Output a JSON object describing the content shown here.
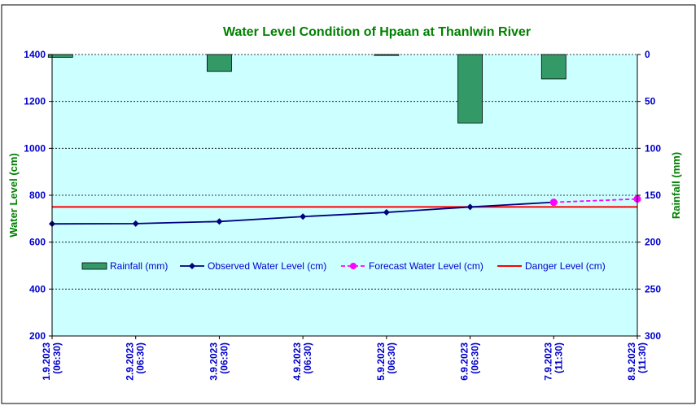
{
  "chart_data": {
    "type": "line",
    "title": "Water Level Condition of Hpaan at Thanlwin River",
    "ylabel": "Water Level (cm)",
    "y2label": "Rainfall (mm)",
    "categories": [
      [
        "1.9.2023",
        "(06:30)"
      ],
      [
        "2.9.2023",
        "(06:30)"
      ],
      [
        "3.9.2023",
        "(06:30)"
      ],
      [
        "4.9.2023",
        "(06:30)"
      ],
      [
        "5.9.2023",
        "(06:30)"
      ],
      [
        "6.9.2023",
        "(06:30)"
      ],
      [
        "7.9.2023",
        "(11:30)"
      ],
      [
        "8.9.2023",
        "(11:30)"
      ]
    ],
    "ylim": [
      200,
      1400
    ],
    "yticks": [
      200,
      400,
      600,
      800,
      1000,
      1200,
      1400
    ],
    "y2lim": [
      0,
      300
    ],
    "y2ticks": [
      0,
      50,
      100,
      150,
      200,
      250,
      300
    ],
    "y2_inverted": true,
    "grid": true,
    "legend_position": "center",
    "series": [
      {
        "name": "Rainfall (mm)",
        "type": "bar",
        "axis": "right",
        "color": "#339966",
        "points": [
          [
            0.1,
            3
          ],
          [
            2.0,
            18
          ],
          [
            4.0,
            1
          ],
          [
            5.0,
            73
          ],
          [
            6.0,
            26
          ]
        ]
      },
      {
        "name": "Observed Water Level (cm)",
        "type": "line",
        "axis": "left",
        "color": "#000080",
        "marker": "diamond",
        "points": [
          [
            0,
            678
          ],
          [
            1,
            679
          ],
          [
            2,
            688
          ],
          [
            3,
            709
          ],
          [
            4,
            727
          ],
          [
            5,
            750
          ],
          [
            6,
            770
          ]
        ]
      },
      {
        "name": "Forecast Water Level (cm)",
        "type": "line",
        "axis": "left",
        "color": "#ff00ff",
        "dashed": true,
        "marker": "circle",
        "points": [
          [
            6,
            770
          ],
          [
            7,
            784
          ]
        ]
      },
      {
        "name": "Danger Level (cm)",
        "type": "line",
        "axis": "left",
        "color": "#ff0000",
        "points": [
          [
            0,
            750
          ],
          [
            7,
            750
          ]
        ]
      }
    ]
  }
}
